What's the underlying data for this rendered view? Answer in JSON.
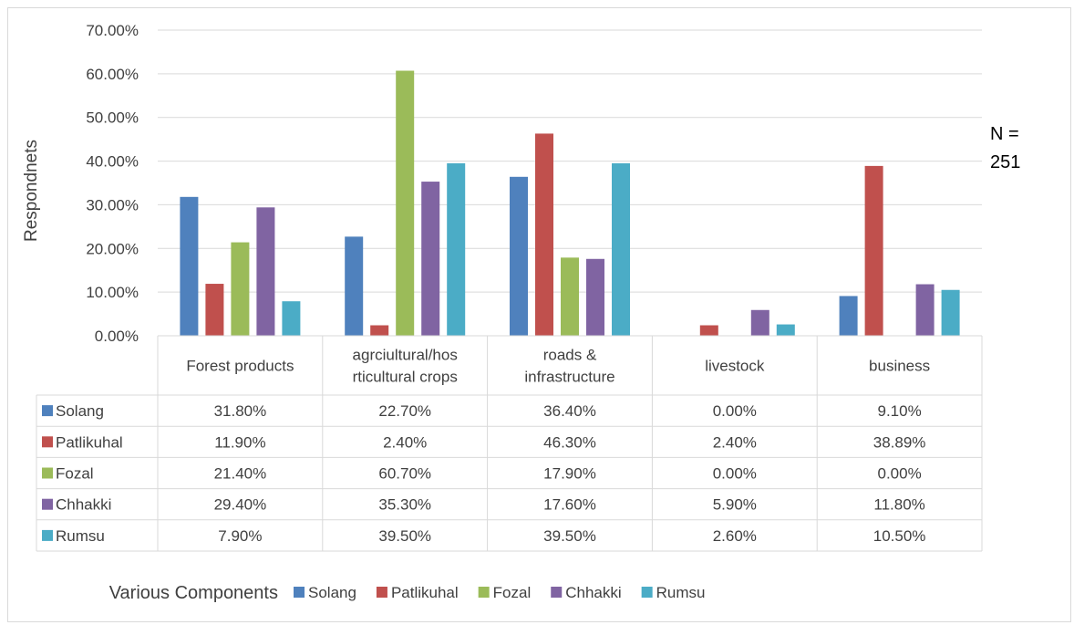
{
  "chart_data": {
    "type": "bar",
    "ylabel": "Respondnets",
    "xlabel": "Various Components",
    "note_lines": [
      "N =",
      "251"
    ],
    "ylim": [
      0,
      70
    ],
    "y_ticks": [
      "0.00%",
      "10.00%",
      "20.00%",
      "30.00%",
      "40.00%",
      "50.00%",
      "60.00%",
      "70.00%"
    ],
    "grid": true,
    "legend_position": "bottom",
    "categories": [
      [
        "Forest products"
      ],
      [
        "agrciultural/hos",
        "rticultural crops"
      ],
      [
        "roads &",
        "infrastructure"
      ],
      [
        "livestock"
      ],
      [
        "business"
      ]
    ],
    "series": [
      {
        "name": "Solang",
        "color": "#4f81bd",
        "values": [
          31.8,
          22.7,
          36.4,
          0.0,
          9.1
        ],
        "labels": [
          "31.80%",
          "22.70%",
          "36.40%",
          "0.00%",
          "9.10%"
        ]
      },
      {
        "name": "Patlikuhal",
        "color": "#c0504d",
        "values": [
          11.9,
          2.4,
          46.3,
          2.4,
          38.89
        ],
        "labels": [
          "11.90%",
          "2.40%",
          "46.30%",
          "2.40%",
          "38.89%"
        ]
      },
      {
        "name": "Fozal",
        "color": "#9bbb59",
        "values": [
          21.4,
          60.7,
          17.9,
          0.0,
          0.0
        ],
        "labels": [
          "21.40%",
          "60.70%",
          "17.90%",
          "0.00%",
          "0.00%"
        ]
      },
      {
        "name": "Chhakki",
        "color": "#8064a2",
        "values": [
          29.4,
          35.3,
          17.6,
          5.9,
          11.8
        ],
        "labels": [
          "29.40%",
          "35.30%",
          "17.60%",
          "5.90%",
          "11.80%"
        ]
      },
      {
        "name": "Rumsu",
        "color": "#4bacc6",
        "values": [
          7.9,
          39.5,
          39.5,
          2.6,
          10.5
        ],
        "labels": [
          "7.90%",
          "39.50%",
          "39.50%",
          "2.60%",
          "10.50%"
        ]
      }
    ]
  }
}
